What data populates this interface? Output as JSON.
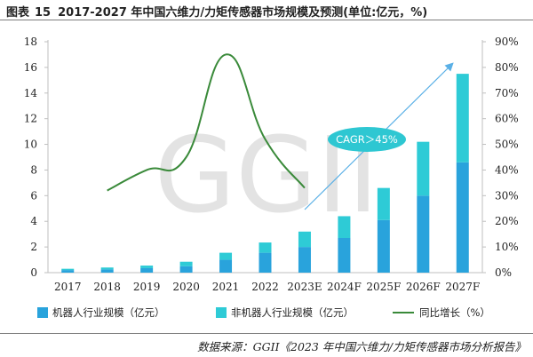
{
  "header": {
    "figure_label": "图表",
    "figure_number": "15",
    "title": "2017-2027 年中国六维力/力矩传感器市场规模及预测(单位:亿元，%)"
  },
  "watermark": "GGII",
  "annotation": {
    "cagr_label": "CAGR＞45%"
  },
  "legend": {
    "robot_label": "机器人行业规模（亿元）",
    "nonrobot_label": "非机器人行业规模（亿元）",
    "growth_label": "同比增长（%）"
  },
  "source": "数据来源：GGII《2023 年中国六维力/力矩传感器市场分析报告》",
  "colors": {
    "robot": "#29a3dc",
    "nonrobot": "#2ecbd6",
    "growth": "#3a8a3a",
    "arrow": "#5ab0e6",
    "cagr_fill": "#2ec7d2",
    "watermark": "#d9d9d9"
  },
  "chart_data": {
    "type": "bar",
    "stacked": true,
    "categories": [
      "2017",
      "2018",
      "2019",
      "2020",
      "2021",
      "2022",
      "2023E",
      "2024F",
      "2025F",
      "2026F",
      "2027F"
    ],
    "series": [
      {
        "name": "机器人行业规模（亿元）",
        "axis": "left",
        "values": [
          0.2,
          0.25,
          0.35,
          0.5,
          1.0,
          1.55,
          2.0,
          2.7,
          4.1,
          6.0,
          8.6
        ]
      },
      {
        "name": "非机器人行业规模（亿元）",
        "axis": "left",
        "values": [
          0.1,
          0.15,
          0.2,
          0.35,
          0.55,
          0.8,
          1.2,
          1.7,
          2.5,
          4.2,
          6.9
        ]
      },
      {
        "name": "同比增长（%）",
        "axis": "right",
        "kind": "line",
        "values": [
          null,
          32,
          40,
          45,
          85,
          52,
          33,
          null,
          null,
          null,
          null
        ]
      }
    ],
    "left_axis": {
      "ylim": [
        0,
        18
      ],
      "ticks": [
        "0",
        "2",
        "4",
        "6",
        "8",
        "10",
        "12",
        "14",
        "16",
        "18"
      ]
    },
    "right_axis": {
      "ylim": [
        0,
        90
      ],
      "ticks": [
        "0%",
        "10%",
        "20%",
        "30%",
        "40%",
        "50%",
        "60%",
        "70%",
        "80%",
        "90%"
      ]
    },
    "grid": false,
    "legend_position": "bottom"
  }
}
